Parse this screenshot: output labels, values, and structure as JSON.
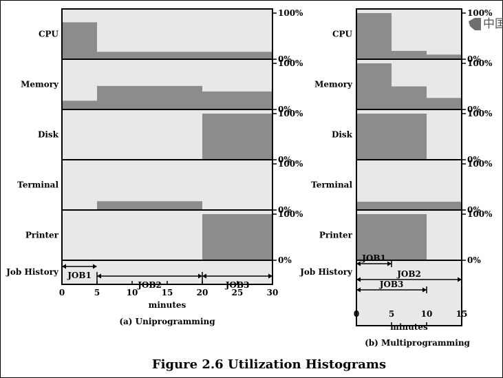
{
  "caption": "Figure 2.6  Utilization Histograms",
  "side_badge": {
    "text": "中国",
    "icon": "speech-bubble-tab-icon"
  },
  "colors": {
    "panel": "#e8e8e8",
    "bar": "#8c8c8c",
    "line": "#000000"
  },
  "chart_data": [
    {
      "type": "area",
      "subtitle": "(a) Uniprogramming",
      "xlabel": "minutes",
      "xlim": [
        0,
        30
      ],
      "xticks": [
        "0",
        "5",
        "10",
        "15",
        "20",
        "25",
        "30"
      ],
      "y_top_label": "100%",
      "y_bottom_label": "0%",
      "rows": [
        {
          "label": "CPU",
          "steps": [
            [
              0,
              5,
              80
            ],
            [
              5,
              30,
              16
            ]
          ]
        },
        {
          "label": "Memory",
          "steps": [
            [
              0,
              5,
              19
            ],
            [
              5,
              20,
              51
            ],
            [
              20,
              30,
              39
            ]
          ]
        },
        {
          "label": "Disk",
          "steps": [
            [
              20,
              30,
              100
            ]
          ]
        },
        {
          "label": "Terminal",
          "steps": [
            [
              5,
              20,
              19
            ]
          ]
        },
        {
          "label": "Printer",
          "steps": [
            [
              20,
              30,
              100
            ]
          ]
        }
      ],
      "job_history_label": "Job History",
      "jobs": [
        {
          "name": "JOB1",
          "start": 0,
          "end": 5
        },
        {
          "name": "JOB2",
          "start": 5,
          "end": 20
        },
        {
          "name": "JOB3",
          "start": 20,
          "end": 30
        }
      ]
    },
    {
      "type": "area",
      "subtitle": "(b) Multiprogramming",
      "xlabel": "minutes",
      "xlim": [
        0,
        15
      ],
      "xticks": [
        "0",
        "5",
        "10",
        "15"
      ],
      "y_top_label": "100%",
      "y_bottom_label": "0%",
      "rows": [
        {
          "label": "CPU",
          "steps": [
            [
              0,
              5,
              100
            ],
            [
              5,
              10,
              18
            ],
            [
              10,
              15,
              10
            ]
          ]
        },
        {
          "label": "Memory",
          "steps": [
            [
              0,
              5,
              100
            ],
            [
              5,
              10,
              50
            ],
            [
              10,
              15,
              25
            ]
          ]
        },
        {
          "label": "Disk",
          "steps": [
            [
              0,
              10,
              100
            ]
          ]
        },
        {
          "label": "Terminal",
          "steps": [
            [
              0,
              15,
              18
            ]
          ]
        },
        {
          "label": "Printer",
          "steps": [
            [
              0,
              10,
              100
            ]
          ]
        }
      ],
      "job_history_label": "Job History",
      "jobs": [
        {
          "name": "JOB1",
          "start": 0,
          "end": 5
        },
        {
          "name": "JOB2",
          "start": 0,
          "end": 15
        },
        {
          "name": "JOB3",
          "start": 0,
          "end": 10
        }
      ]
    }
  ]
}
